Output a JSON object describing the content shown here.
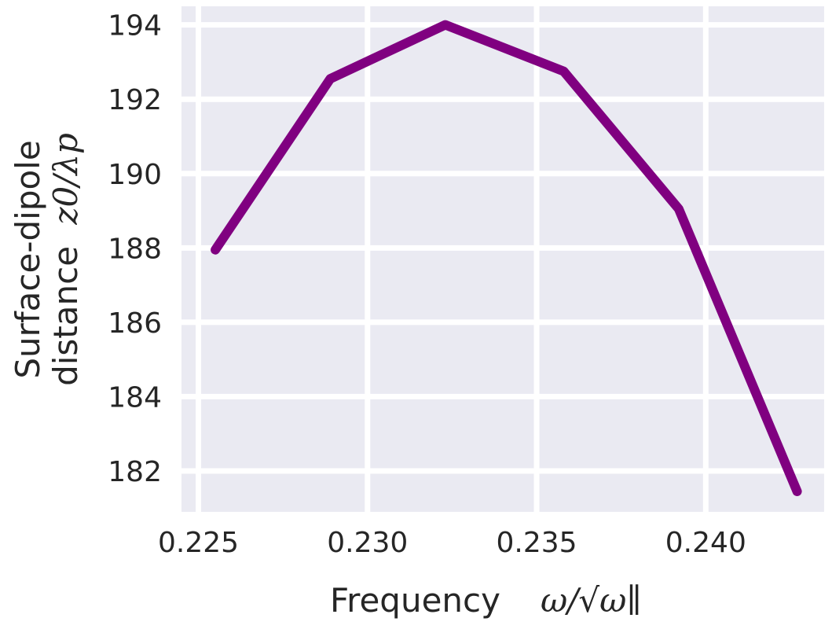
{
  "chart_data": {
    "type": "line",
    "x": [
      0.2255,
      0.2289,
      0.2323,
      0.2358,
      0.2392,
      0.2427
    ],
    "series": [
      {
        "values": [
          187.95,
          192.55,
          194.0,
          192.75,
          189.05,
          181.45
        ],
        "color": "#800080"
      }
    ],
    "xlim": [
      0.2245,
      0.2435
    ],
    "ylim": [
      180.9,
      194.5
    ],
    "xticks": [
      0.225,
      0.23,
      0.235,
      0.24
    ],
    "xtick_labels": [
      "0.225",
      "0.230",
      "0.235",
      "0.240"
    ],
    "yticks": [
      182,
      184,
      186,
      188,
      190,
      192,
      194
    ],
    "ytick_labels": [
      "182",
      "184",
      "186",
      "188",
      "190",
      "192",
      "194"
    ],
    "xlabel_text": "Frequency",
    "xlabel_math": "ω/√ω∥",
    "ylabel_line1": "Surface-dipole",
    "ylabel_line2_text": "distance",
    "ylabel_line2_math": "z0/λp",
    "background": "#eaeaf2",
    "grid": true,
    "grid_color": "#ffffff"
  }
}
